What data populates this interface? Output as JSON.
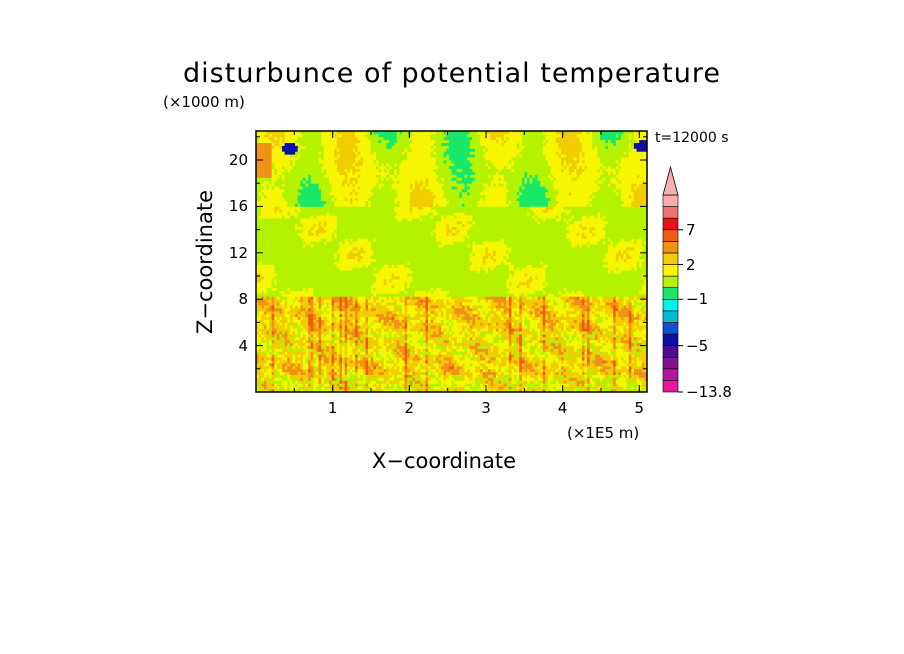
{
  "chart_data": {
    "type": "heatmap",
    "title": "disturbunce of potential temperature",
    "xlabel": "X−coordinate",
    "ylabel": "Z−coordinate",
    "x_unit_label": "(×1E5 m)",
    "y_unit_label": "(×1000 m)",
    "time_label": "t=12000 s",
    "xlim": [
      0,
      5.1
    ],
    "ylim": [
      0,
      22.5
    ],
    "x_ticks": [
      "1",
      "2",
      "3",
      "4",
      "5"
    ],
    "y_ticks": [
      "4",
      "8",
      "12",
      "16",
      "20"
    ],
    "colorbar": {
      "tick_labels": [
        "7",
        "2",
        "−1",
        "−5",
        "−13.8"
      ],
      "levels_low_to_high": [
        -13.8,
        -11,
        -9,
        -7,
        -5,
        -4,
        -3,
        -2,
        -1,
        0,
        1,
        2,
        3,
        5,
        7,
        9
      ],
      "colors_low_to_high": [
        "#e8189e",
        "#b8169e",
        "#82128e",
        "#4a0c96",
        "#0e0ea8",
        "#0a50d2",
        "#00bcd6",
        "#00f0f0",
        "#19e86a",
        "#b4f200",
        "#f6f600",
        "#f0cc00",
        "#f09218",
        "#f05c10",
        "#e81414",
        "#f07070",
        "#f4b0b0"
      ],
      "extends_max": true
    },
    "field_summary": {
      "z_0_to_8": "mostly positive (yellow/orange) with fine-scale vertical streaks",
      "z_8_to_16": "mostly slightly negative (green) with yellow patches",
      "z_16_to_22": "alternating yellow/orange wave columns and green/cyan regions",
      "extremes": "small blue/purple negative spots near x=0.45 and x=5.05 at z≈21"
    }
  }
}
